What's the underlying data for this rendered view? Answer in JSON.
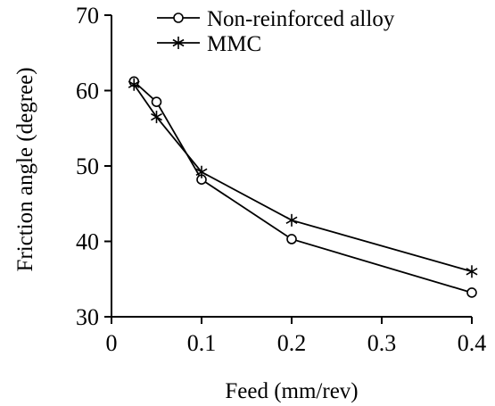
{
  "chart_data": {
    "type": "line",
    "xlabel": "Feed (mm/rev)",
    "ylabel": "Friction angle (degree)",
    "xlim": [
      0,
      0.4
    ],
    "ylim": [
      30,
      70
    ],
    "x_ticks": [
      0,
      0.1,
      0.2,
      0.3,
      0.4
    ],
    "x_tick_labels": [
      "0",
      "0.1",
      "0.2",
      "0.3",
      "0.4"
    ],
    "y_ticks": [
      30,
      40,
      50,
      60,
      70
    ],
    "y_tick_labels": [
      "30",
      "40",
      "50",
      "60",
      "70"
    ],
    "grid": false,
    "legend_position": "top-center",
    "series": [
      {
        "name": "Non-reinforced alloy",
        "marker": "circle",
        "color": "#000000",
        "x": [
          0.025,
          0.05,
          0.1,
          0.2,
          0.4
        ],
        "y": [
          61.2,
          58.5,
          48.2,
          40.3,
          33.2
        ]
      },
      {
        "name": "MMC",
        "marker": "asterisk",
        "color": "#000000",
        "x": [
          0.025,
          0.05,
          0.1,
          0.2,
          0.4
        ],
        "y": [
          60.8,
          56.5,
          49.2,
          42.8,
          36
        ]
      }
    ]
  }
}
